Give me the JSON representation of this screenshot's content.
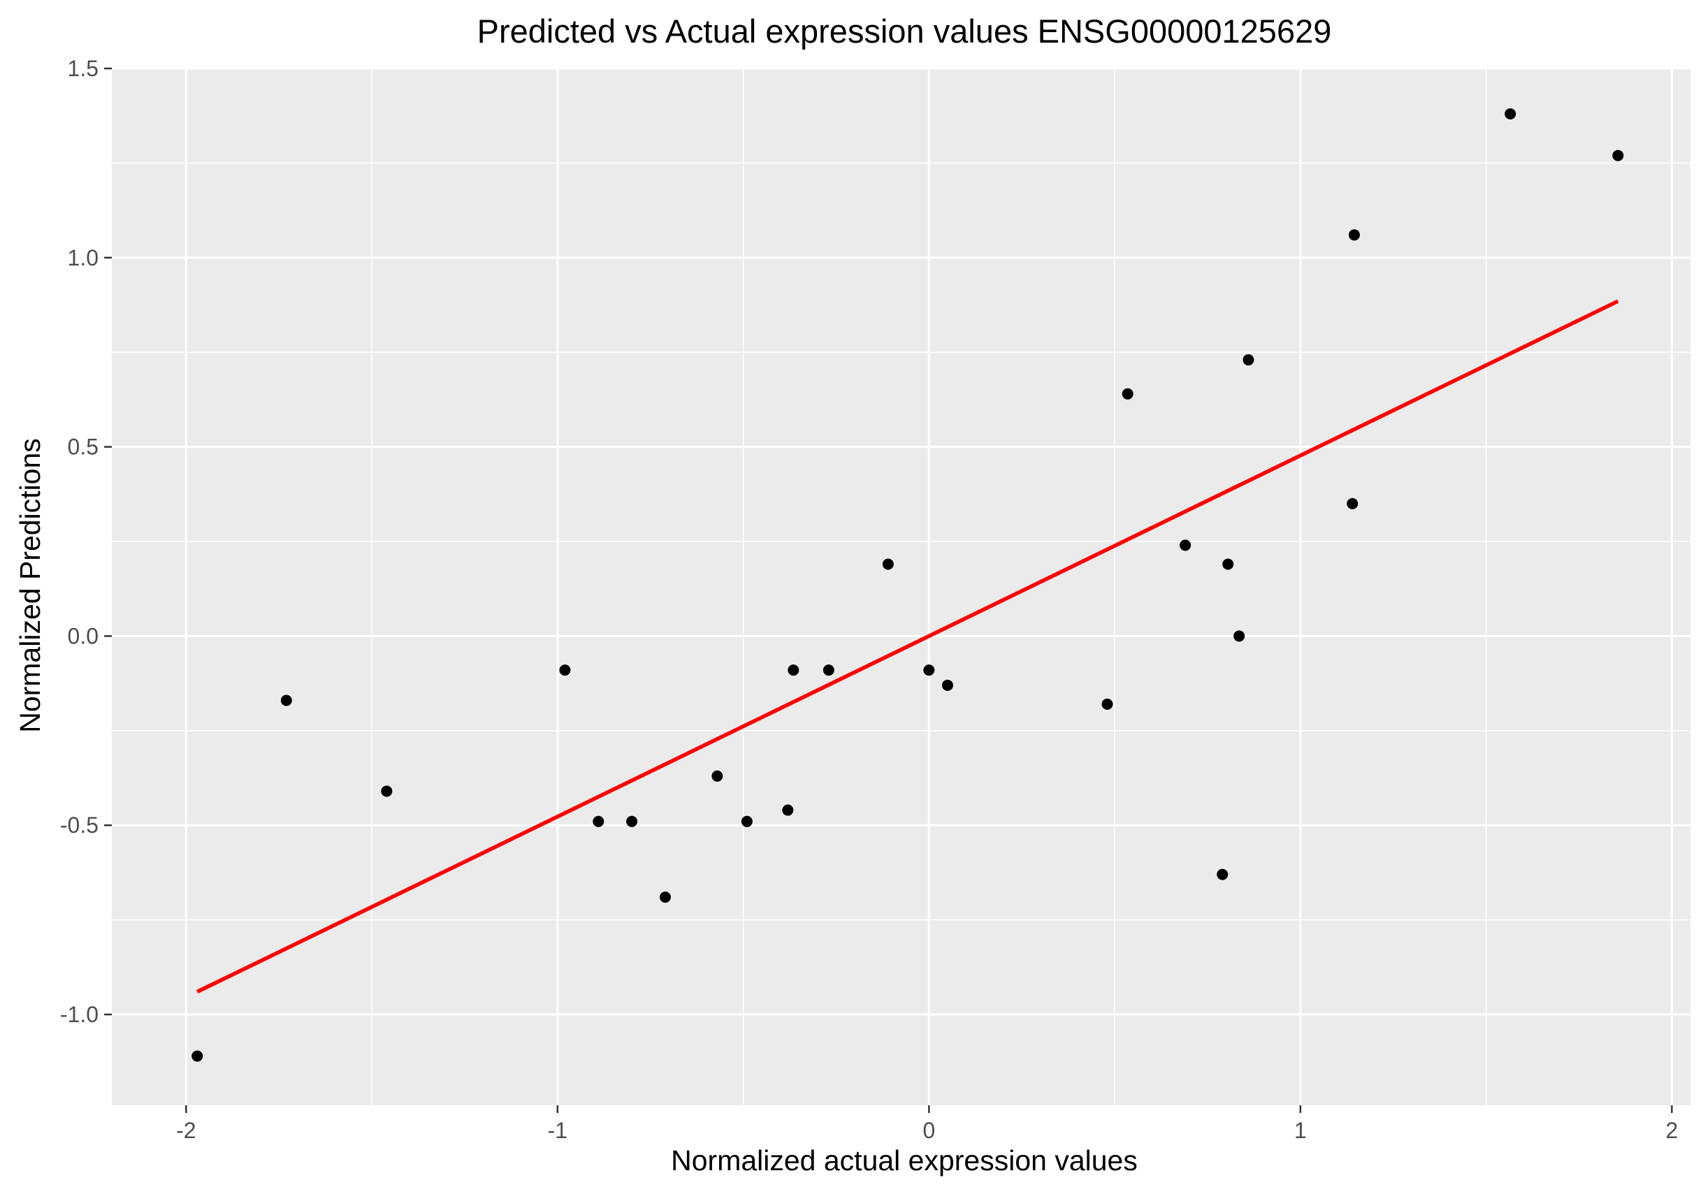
{
  "chart_data": {
    "type": "scatter",
    "title": "Predicted vs Actual expression values ENSG00000125629",
    "xlabel": "Normalized actual expression values",
    "ylabel": "Normalized Predictions",
    "xlim": [
      -2.2,
      2.05
    ],
    "ylim": [
      -1.24,
      1.5
    ],
    "x_ticks": [
      -2,
      -1,
      0,
      1,
      2
    ],
    "x_tick_labels": [
      "-2",
      "-1",
      "0",
      "1",
      "2"
    ],
    "y_ticks": [
      -1.0,
      -0.5,
      0.0,
      0.5,
      1.0,
      1.5
    ],
    "y_tick_labels": [
      "-1.0",
      "-0.5",
      "0.0",
      "0.5",
      "1.0",
      "1.5"
    ],
    "grid": true,
    "legend": "none",
    "colors": {
      "panel_background": "#ebebeb",
      "grid": "#ffffff",
      "points": "#000000",
      "fit_line": "#ff0000",
      "tick_text": "#4d4d4d",
      "tick_marks": "#333333"
    },
    "points": [
      {
        "x": -1.97,
        "y": -1.11
      },
      {
        "x": -1.73,
        "y": -0.17
      },
      {
        "x": -1.46,
        "y": -0.41
      },
      {
        "x": -0.98,
        "y": -0.09
      },
      {
        "x": -0.89,
        "y": -0.49
      },
      {
        "x": -0.8,
        "y": -0.49
      },
      {
        "x": -0.71,
        "y": -0.69
      },
      {
        "x": -0.57,
        "y": -0.37
      },
      {
        "x": -0.49,
        "y": -0.49
      },
      {
        "x": -0.38,
        "y": -0.46
      },
      {
        "x": -0.365,
        "y": -0.09
      },
      {
        "x": -0.27,
        "y": -0.09
      },
      {
        "x": -0.11,
        "y": 0.19
      },
      {
        "x": 0.0,
        "y": -0.09
      },
      {
        "x": 0.05,
        "y": -0.13
      },
      {
        "x": 0.48,
        "y": -0.18
      },
      {
        "x": 0.535,
        "y": 0.64
      },
      {
        "x": 0.69,
        "y": 0.24
      },
      {
        "x": 0.79,
        "y": -0.63
      },
      {
        "x": 0.805,
        "y": 0.19
      },
      {
        "x": 0.835,
        "y": 0.0
      },
      {
        "x": 0.86,
        "y": 0.73
      },
      {
        "x": 1.14,
        "y": 0.35
      },
      {
        "x": 1.145,
        "y": 1.06
      },
      {
        "x": 1.565,
        "y": 1.38
      },
      {
        "x": 1.855,
        "y": 1.27
      }
    ],
    "fit_line": {
      "x": [
        -1.97,
        1.855
      ],
      "y": [
        -0.94,
        0.885
      ]
    }
  }
}
